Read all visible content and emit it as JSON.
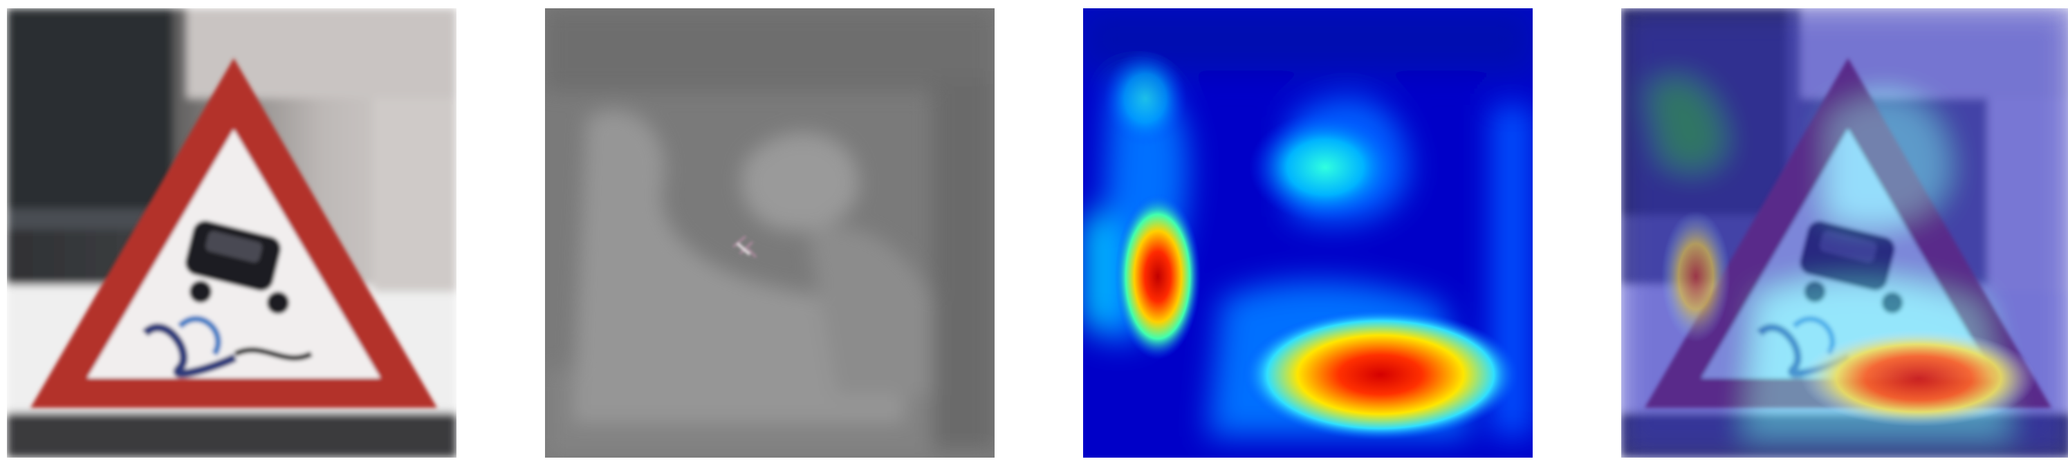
{
  "figure": {
    "panels": [
      {
        "kind": "input-photo",
        "subject": "slippery-road-warning-sign"
      },
      {
        "kind": "gradient-saliency-map",
        "tone": "grayscale"
      },
      {
        "kind": "activation-heatmap",
        "colormap": "jet"
      },
      {
        "kind": "heatmap-overlay",
        "colormap": "jet"
      }
    ],
    "colors": {
      "sign_red": "#b3302c",
      "sign_white": "#f1eeee",
      "saliency_gray": "#8e8e8e",
      "jet_low": "#0000c8",
      "jet_high": "#d40000"
    }
  }
}
